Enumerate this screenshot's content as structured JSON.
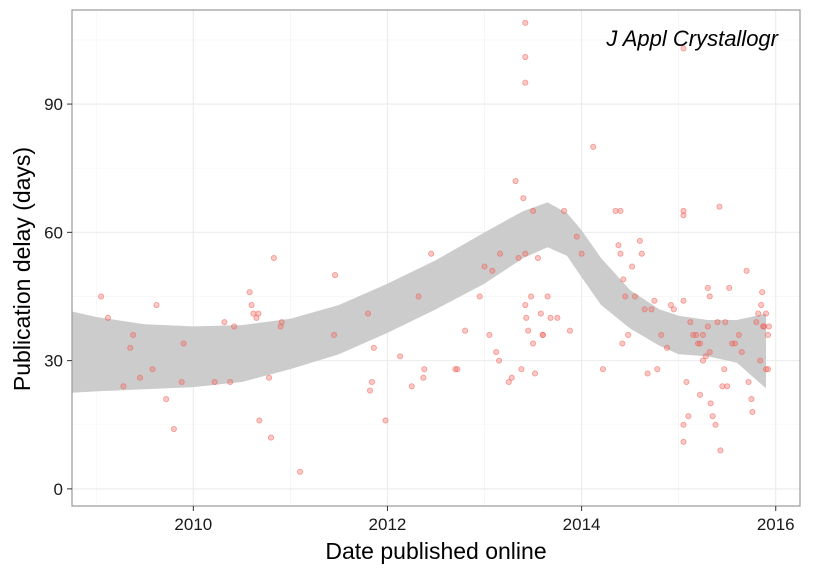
{
  "chart_data": {
    "type": "scatter",
    "title": "J Appl Crystallogr",
    "xlabel": "Date published online",
    "ylabel": "Publication delay (days)",
    "xlim": [
      2008.75,
      2016.25
    ],
    "ylim": [
      -4,
      112
    ],
    "x_ticks": [
      2010,
      2012,
      2014,
      2016
    ],
    "y_ticks": [
      0,
      30,
      60,
      90
    ],
    "grid": true,
    "legend": "none",
    "colors": {
      "points": "#f0625a",
      "ribbon": "#cccccc",
      "panel_border": "#999999",
      "grid": "#ebebeb"
    },
    "points": [
      [
        2009.05,
        45
      ],
      [
        2009.12,
        40
      ],
      [
        2009.28,
        24
      ],
      [
        2009.35,
        33
      ],
      [
        2009.38,
        36
      ],
      [
        2009.45,
        26
      ],
      [
        2009.58,
        28
      ],
      [
        2009.62,
        43
      ],
      [
        2009.72,
        21
      ],
      [
        2009.8,
        14
      ],
      [
        2009.88,
        25
      ],
      [
        2009.9,
        34
      ],
      [
        2010.22,
        25
      ],
      [
        2010.32,
        39
      ],
      [
        2010.38,
        25
      ],
      [
        2010.42,
        38
      ],
      [
        2010.58,
        46
      ],
      [
        2010.6,
        43
      ],
      [
        2010.62,
        41
      ],
      [
        2010.65,
        40
      ],
      [
        2010.67,
        41
      ],
      [
        2010.68,
        16
      ],
      [
        2010.78,
        26
      ],
      [
        2010.8,
        12
      ],
      [
        2010.83,
        54
      ],
      [
        2010.9,
        38
      ],
      [
        2010.91,
        39
      ],
      [
        2011.1,
        4
      ],
      [
        2011.45,
        36
      ],
      [
        2011.46,
        50
      ],
      [
        2011.8,
        41
      ],
      [
        2011.82,
        23
      ],
      [
        2011.84,
        25
      ],
      [
        2011.86,
        33
      ],
      [
        2011.98,
        16
      ],
      [
        2012.13,
        31
      ],
      [
        2012.25,
        24
      ],
      [
        2012.32,
        45
      ],
      [
        2012.37,
        26
      ],
      [
        2012.38,
        28
      ],
      [
        2012.45,
        55
      ],
      [
        2012.7,
        28
      ],
      [
        2012.72,
        28
      ],
      [
        2012.8,
        37
      ],
      [
        2012.95,
        45
      ],
      [
        2013.0,
        52
      ],
      [
        2013.05,
        36
      ],
      [
        2013.08,
        51
      ],
      [
        2013.12,
        32
      ],
      [
        2013.15,
        30
      ],
      [
        2013.16,
        55
      ],
      [
        2013.25,
        25
      ],
      [
        2013.28,
        26
      ],
      [
        2013.32,
        72
      ],
      [
        2013.35,
        54
      ],
      [
        2013.38,
        28
      ],
      [
        2013.4,
        68
      ],
      [
        2013.42,
        109
      ],
      [
        2013.42,
        101
      ],
      [
        2013.42,
        95
      ],
      [
        2013.42,
        43
      ],
      [
        2013.42,
        55
      ],
      [
        2013.43,
        40
      ],
      [
        2013.45,
        37
      ],
      [
        2013.48,
        45
      ],
      [
        2013.5,
        65
      ],
      [
        2013.5,
        34
      ],
      [
        2013.52,
        27
      ],
      [
        2013.55,
        54
      ],
      [
        2013.58,
        41
      ],
      [
        2013.6,
        36
      ],
      [
        2013.6,
        36
      ],
      [
        2013.65,
        45
      ],
      [
        2013.68,
        40
      ],
      [
        2013.75,
        40
      ],
      [
        2013.82,
        65
      ],
      [
        2013.88,
        37
      ],
      [
        2013.95,
        59
      ],
      [
        2014.0,
        55
      ],
      [
        2014.12,
        80
      ],
      [
        2014.22,
        28
      ],
      [
        2014.35,
        65
      ],
      [
        2014.38,
        57
      ],
      [
        2014.4,
        65
      ],
      [
        2014.4,
        55
      ],
      [
        2014.42,
        34
      ],
      [
        2014.43,
        49
      ],
      [
        2014.45,
        45
      ],
      [
        2014.48,
        36
      ],
      [
        2014.52,
        52
      ],
      [
        2014.55,
        45
      ],
      [
        2014.6,
        58
      ],
      [
        2014.62,
        55
      ],
      [
        2014.65,
        42
      ],
      [
        2014.68,
        27
      ],
      [
        2014.72,
        42
      ],
      [
        2014.75,
        44
      ],
      [
        2014.78,
        28
      ],
      [
        2014.82,
        36
      ],
      [
        2014.88,
        33
      ],
      [
        2014.92,
        43
      ],
      [
        2014.95,
        42
      ],
      [
        2015.05,
        103
      ],
      [
        2015.05,
        65
      ],
      [
        2015.05,
        64
      ],
      [
        2015.05,
        44
      ],
      [
        2015.05,
        15
      ],
      [
        2015.05,
        11
      ],
      [
        2015.08,
        25
      ],
      [
        2015.1,
        17
      ],
      [
        2015.12,
        39
      ],
      [
        2015.15,
        36
      ],
      [
        2015.18,
        36
      ],
      [
        2015.2,
        34
      ],
      [
        2015.22,
        34
      ],
      [
        2015.25,
        36
      ],
      [
        2015.22,
        22
      ],
      [
        2015.25,
        30
      ],
      [
        2015.28,
        31
      ],
      [
        2015.3,
        47
      ],
      [
        2015.3,
        38
      ],
      [
        2015.32,
        45
      ],
      [
        2015.32,
        32
      ],
      [
        2015.33,
        20
      ],
      [
        2015.35,
        17
      ],
      [
        2015.38,
        15
      ],
      [
        2015.4,
        39
      ],
      [
        2015.42,
        66
      ],
      [
        2015.43,
        9
      ],
      [
        2015.45,
        24
      ],
      [
        2015.47,
        28
      ],
      [
        2015.48,
        39
      ],
      [
        2015.5,
        24
      ],
      [
        2015.52,
        47
      ],
      [
        2015.55,
        34
      ],
      [
        2015.58,
        34
      ],
      [
        2015.62,
        36
      ],
      [
        2015.65,
        32
      ],
      [
        2015.7,
        51
      ],
      [
        2015.72,
        25
      ],
      [
        2015.75,
        21
      ],
      [
        2015.76,
        18
      ],
      [
        2015.8,
        39
      ],
      [
        2015.82,
        41
      ],
      [
        2015.84,
        30
      ],
      [
        2015.85,
        43
      ],
      [
        2015.86,
        46
      ],
      [
        2015.87,
        38
      ],
      [
        2015.88,
        38
      ],
      [
        2015.9,
        41
      ],
      [
        2015.9,
        28
      ],
      [
        2015.92,
        28
      ],
      [
        2015.92,
        36
      ],
      [
        2015.93,
        38
      ]
    ],
    "ribbon": [
      [
        2008.75,
        41.5,
        22.5
      ],
      [
        2009.0,
        40.2,
        22.8
      ],
      [
        2009.5,
        38.5,
        23.3
      ],
      [
        2010.0,
        38.0,
        23.8
      ],
      [
        2010.5,
        38.3,
        25.0
      ],
      [
        2011.0,
        39.8,
        28.0
      ],
      [
        2011.5,
        43.0,
        31.5
      ],
      [
        2012.0,
        48.0,
        36.5
      ],
      [
        2012.5,
        53.5,
        42.0
      ],
      [
        2013.0,
        60.0,
        48.0
      ],
      [
        2013.4,
        65.0,
        54.0
      ],
      [
        2013.65,
        67.0,
        56.5
      ],
      [
        2013.85,
        64.5,
        54.5
      ],
      [
        2014.0,
        60.5,
        49.5
      ],
      [
        2014.2,
        54.0,
        43.0
      ],
      [
        2014.5,
        46.5,
        37.5
      ],
      [
        2014.8,
        42.0,
        33.5
      ],
      [
        2015.0,
        40.5,
        31.5
      ],
      [
        2015.3,
        39.5,
        31.0
      ],
      [
        2015.6,
        39.5,
        29.5
      ],
      [
        2015.9,
        41.0,
        23.5
      ]
    ]
  }
}
